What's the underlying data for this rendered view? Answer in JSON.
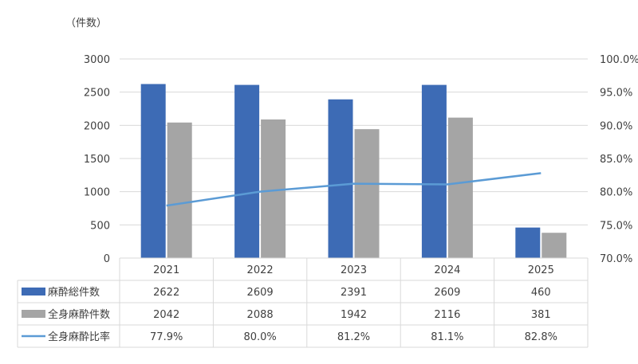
{
  "chart_data": {
    "type": "bar",
    "unit_label": "（件数）",
    "categories": [
      "2021",
      "2022",
      "2023",
      "2024",
      "2025"
    ],
    "y_left": {
      "ticks": [
        0,
        500,
        1000,
        1500,
        2000,
        2500,
        3000
      ],
      "ylim": [
        0,
        3000
      ]
    },
    "y_right": {
      "ticks": [
        "70.0%",
        "75.0%",
        "80.0%",
        "85.0%",
        "90.0%",
        "95.0%",
        "100.0%"
      ],
      "ylim": [
        70,
        100
      ]
    },
    "series": [
      {
        "name": "麻酔総件数",
        "kind": "bar",
        "color": "#3d6bb5",
        "values": [
          2622,
          2609,
          2391,
          2609,
          460
        ],
        "labels": [
          "2622",
          "2609",
          "2391",
          "2609",
          "460"
        ]
      },
      {
        "name": "全身麻酔件数",
        "kind": "bar",
        "color": "#a5a5a5",
        "values": [
          2042,
          2088,
          1942,
          2116,
          381
        ],
        "labels": [
          "2042",
          "2088",
          "1942",
          "2116",
          "381"
        ]
      },
      {
        "name": "全身麻酔比率",
        "kind": "line",
        "axis": "right",
        "color": "#5b9bd5",
        "values": [
          77.9,
          80.0,
          81.2,
          81.1,
          82.8
        ],
        "labels": [
          "77.9%",
          "80.0%",
          "81.2%",
          "81.1%",
          "82.8%"
        ]
      }
    ],
    "grid": true,
    "legend": "data-table"
  }
}
